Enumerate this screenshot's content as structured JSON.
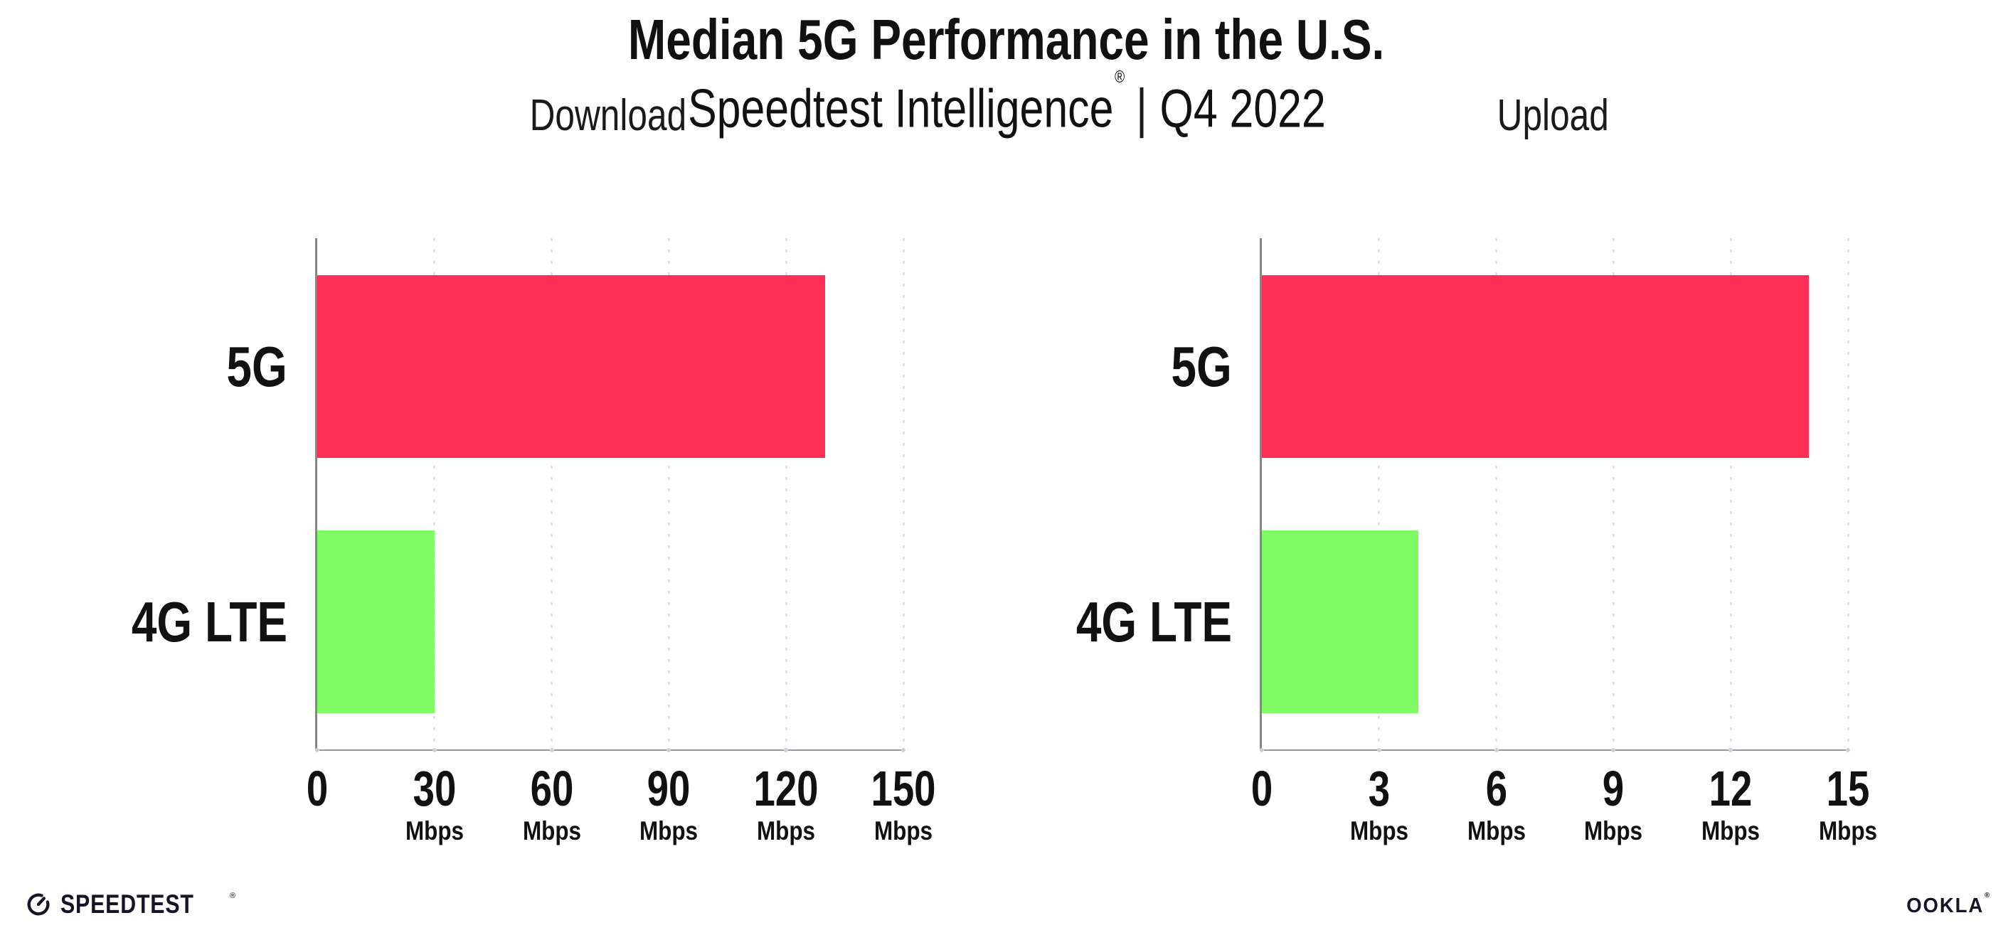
{
  "header": {
    "title": "Median 5G Performance in the U.S.",
    "subtitle_brand": "Speedtest Intelligence",
    "subtitle_trademark": "®",
    "subtitle_separator": "|",
    "subtitle_period": "Q4 2022"
  },
  "chart_data": [
    {
      "type": "bar",
      "orientation": "horizontal",
      "title": "Download",
      "categories": [
        "5G",
        "4G LTE"
      ],
      "values": [
        130,
        30
      ],
      "unit": "Mbps",
      "xlabel": "",
      "ylabel": "",
      "xlim": [
        0,
        150
      ],
      "xticks": [
        0,
        30,
        60,
        90,
        120,
        150
      ],
      "bar_colors": [
        "#ff2e57",
        "#80fb64"
      ],
      "grid": "dotted-vertical-at-ticks",
      "legend": "none"
    },
    {
      "type": "bar",
      "orientation": "horizontal",
      "title": "Upload",
      "categories": [
        "5G",
        "4G LTE"
      ],
      "values": [
        14,
        4
      ],
      "unit": "Mbps",
      "xlabel": "",
      "ylabel": "",
      "xlim": [
        0,
        15
      ],
      "xticks": [
        0,
        3,
        6,
        9,
        12,
        15
      ],
      "bar_colors": [
        "#ff2e57",
        "#80fb64"
      ],
      "grid": "dotted-vertical-at-ticks",
      "legend": "none"
    }
  ],
  "footer": {
    "speedtest_logo_text": "SPEEDTEST",
    "speedtest_trademark": "®",
    "ookla_logo_text": "OOKLA",
    "ookla_trademark": "®"
  },
  "colors": {
    "bar_5g": "#ff2e57",
    "bar_4g_lte": "#80fb64",
    "axis_line": "#85858a",
    "gridline": "#e2e2ec",
    "text": "#111111",
    "logo": "#141526",
    "background": "#ffffff"
  }
}
